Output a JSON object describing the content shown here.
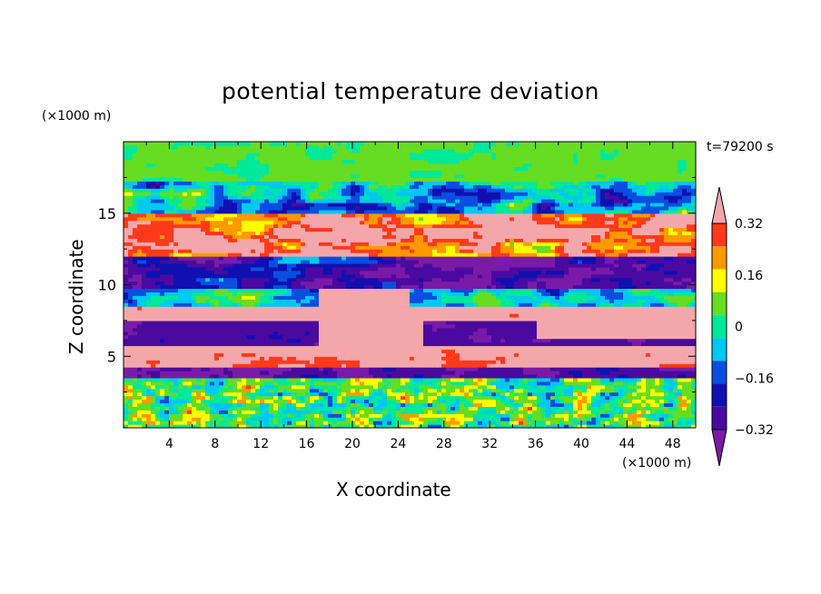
{
  "chart_data": {
    "type": "heatmap",
    "title": "potential temperature deviation",
    "xlabel": "X coordinate",
    "ylabel": "Z coordinate",
    "x_unit": "(×1000 m)",
    "y_unit": "(×1000 m)",
    "time_label": "t=79200 s",
    "xlim": [
      0,
      50
    ],
    "ylim": [
      0,
      20
    ],
    "x_ticks": [
      4,
      8,
      12,
      16,
      20,
      24,
      28,
      32,
      36,
      40,
      44,
      48
    ],
    "y_ticks": [
      5,
      10,
      15
    ],
    "colorbar": {
      "levels": [
        -0.4,
        -0.32,
        -0.24,
        -0.16,
        -0.08,
        0,
        0.08,
        0.16,
        0.24,
        0.32,
        0.4
      ],
      "labeled_ticks": [
        "0.32",
        "0.16",
        "0",
        "−0.16",
        "−0.32"
      ],
      "labeled_values": [
        0.32,
        0.16,
        0,
        -0.16,
        -0.32
      ],
      "colors": [
        "#7a1aa8",
        "#4a0aa0",
        "#1010b0",
        "#0a4ee0",
        "#00c8f0",
        "#00e89a",
        "#66dd22",
        "#ffff00",
        "#ff9900",
        "#ff3a1a",
        "#f4a7ab"
      ],
      "extend": "both"
    },
    "bands": [
      {
        "z_range": [
          0,
          3.5
        ],
        "description_values": "mixed small-scale (-0.3 to 0.3)",
        "mean": 0.02
      },
      {
        "z_range": [
          3.5,
          5.5
        ],
        "mean": 0.35
      },
      {
        "z_range": [
          5.5,
          7.5
        ],
        "mean": -0.38
      },
      {
        "z_range": [
          7.5,
          10
        ],
        "mean": 0.1
      },
      {
        "z_range": [
          10,
          12
        ],
        "mean": -0.35
      },
      {
        "z_range": [
          12,
          15
        ],
        "mean": 0.3
      },
      {
        "z_range": [
          15,
          17
        ],
        "mean": -0.1
      },
      {
        "z_range": [
          17,
          20
        ],
        "mean": 0.02
      }
    ]
  }
}
